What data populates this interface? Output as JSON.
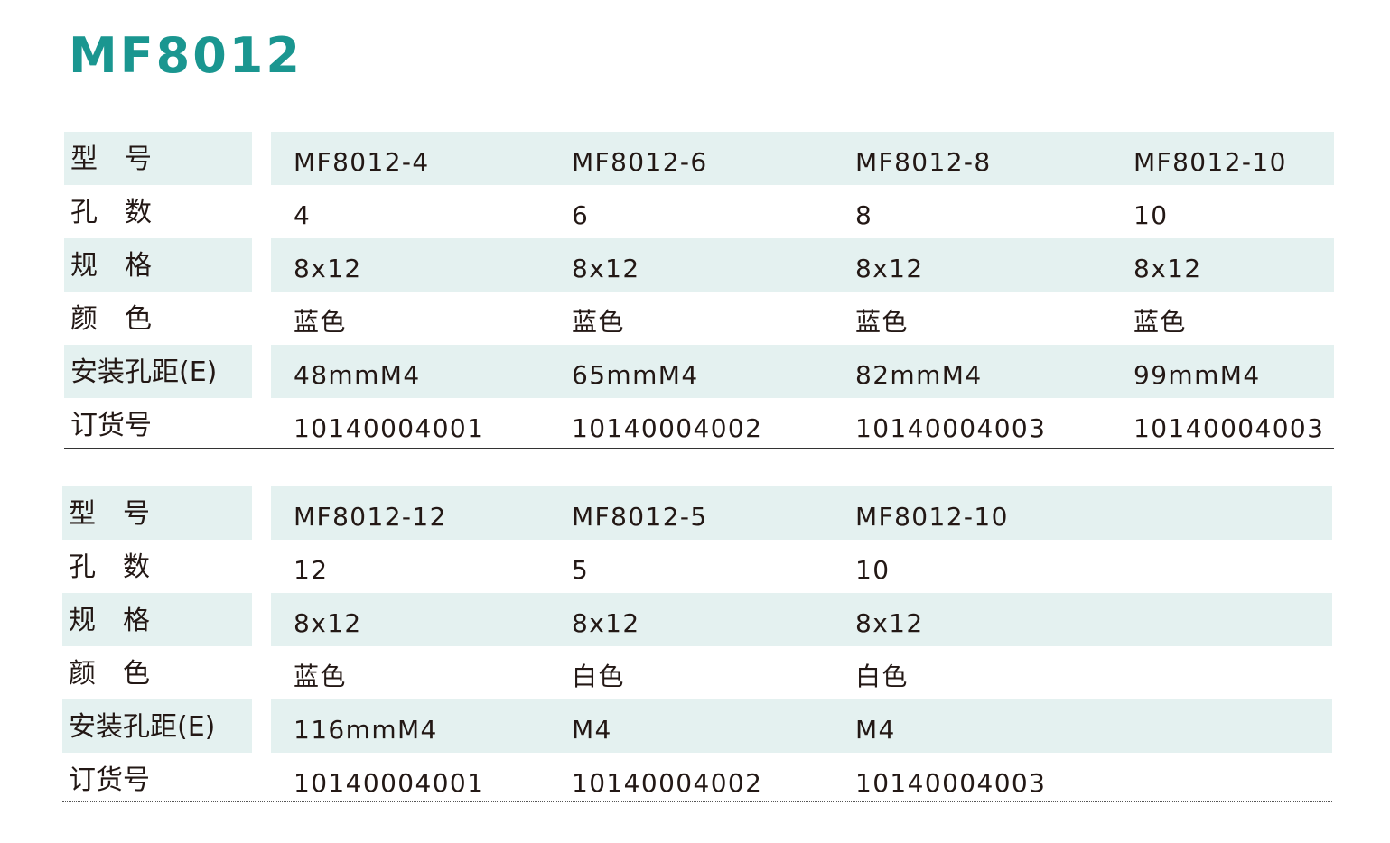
{
  "title": "MF8012",
  "tables": [
    {
      "rows": [
        {
          "label": "型　号",
          "values": [
            "MF8012-4",
            "MF8012-6",
            "MF8012-8",
            "MF8012-10"
          ]
        },
        {
          "label": "孔　数",
          "values": [
            "4",
            "6",
            "8",
            "10"
          ]
        },
        {
          "label": "规　格",
          "values": [
            "8x12",
            "8x12",
            "8x12",
            "8x12"
          ]
        },
        {
          "label": "颜　色",
          "values": [
            "蓝色",
            "蓝色",
            "蓝色",
            "蓝色"
          ]
        },
        {
          "label": "安装孔距(E)",
          "values": [
            "48mmM4",
            "65mmM4",
            "82mmM4",
            "99mmM4"
          ]
        },
        {
          "label": "订货号",
          "values": [
            "10140004001",
            "10140004002",
            "10140004003",
            "10140004003"
          ]
        }
      ]
    },
    {
      "rows": [
        {
          "label": "型　号",
          "values": [
            "MF8012-12",
            "MF8012-5",
            "MF8012-10"
          ]
        },
        {
          "label": "孔　数",
          "values": [
            "12",
            "5",
            "10"
          ]
        },
        {
          "label": "规　格",
          "values": [
            "8x12",
            "8x12",
            "8x12"
          ]
        },
        {
          "label": "颜　色",
          "values": [
            "蓝色",
            "白色",
            "白色"
          ]
        },
        {
          "label": "安装孔距(E)",
          "values": [
            "116mmM4",
            "M4",
            "M4"
          ]
        },
        {
          "label": "订货号",
          "values": [
            "10140004001",
            "10140004002",
            "10140004003"
          ]
        }
      ]
    }
  ],
  "colors": {
    "title": "#1a9690",
    "row_shade": "#e4f1f0",
    "text": "#231815"
  }
}
